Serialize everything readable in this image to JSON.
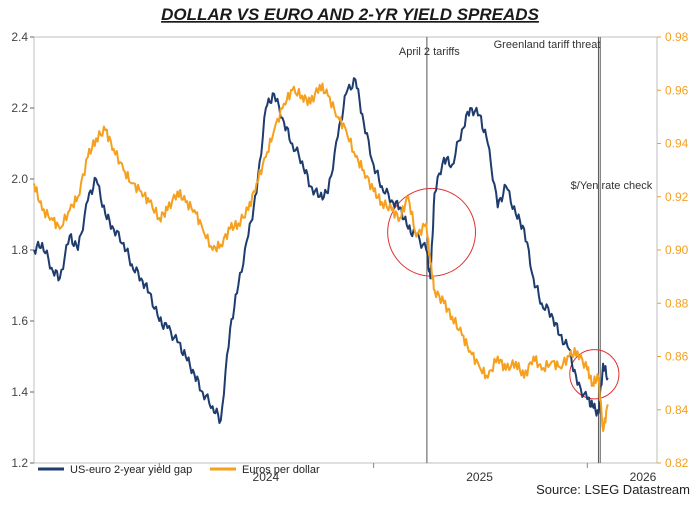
{
  "chart_data": {
    "type": "line",
    "title": "DOLLAR VS EURO AND 2-YR YIELD SPREADS",
    "source": "Source: LSEG Datastream",
    "x_ticks": [
      "2024",
      "2025",
      "2026"
    ],
    "x_range": [
      "2023-06-01",
      "2026-04-30"
    ],
    "y_left": {
      "ylim": [
        1.2,
        2.4
      ],
      "ticks": [
        "1.2",
        "1.4",
        "1.6",
        "1.8",
        "2.0",
        "2.2",
        "2.4"
      ]
    },
    "y_right": {
      "ylim": [
        0.82,
        0.98
      ],
      "ticks": [
        "0.82",
        "0.84",
        "0.86",
        "0.88",
        "0.90",
        "0.92",
        "0.94",
        "0.96",
        "0.98"
      ]
    },
    "grid": false,
    "legend_position": "bottom-left",
    "colors": {
      "spread": "#1f3c6e",
      "euro": "#f5a01e",
      "circle": "#e03030",
      "vline": "#555555"
    },
    "annotations": [
      {
        "text": "April 2 tariffs",
        "x": "2025-04-02"
      },
      {
        "text": "Greenland tariff threat",
        "x": "2026-01-20"
      },
      {
        "text": "$/Yen rate check",
        "x": "2026-01-23"
      }
    ],
    "highlight_circles": [
      {
        "center_x": "2025-04-10",
        "center_y_left": 1.85,
        "radius_days": 75
      },
      {
        "center_x": "2026-01-13",
        "center_y_left": 1.45,
        "radius_days": 42
      }
    ],
    "series": [
      {
        "name": "US-euro 2-year yield gap",
        "axis": "left",
        "x": [
          "2023-06-01",
          "2023-06-15",
          "2023-07-01",
          "2023-07-15",
          "2023-08-01",
          "2023-08-15",
          "2023-09-01",
          "2023-09-15",
          "2023-10-01",
          "2023-10-15",
          "2023-11-01",
          "2023-11-15",
          "2023-12-01",
          "2023-12-15",
          "2024-01-01",
          "2024-01-15",
          "2024-02-01",
          "2024-02-15",
          "2024-03-01",
          "2024-03-15",
          "2024-04-01",
          "2024-04-15",
          "2024-05-01",
          "2024-05-15",
          "2024-06-01",
          "2024-06-15",
          "2024-07-01",
          "2024-07-15",
          "2024-08-01",
          "2024-08-15",
          "2024-09-01",
          "2024-09-15",
          "2024-10-01",
          "2024-10-15",
          "2024-11-01",
          "2024-11-15",
          "2024-12-01",
          "2024-12-15",
          "2025-01-01",
          "2025-01-15",
          "2025-02-01",
          "2025-02-15",
          "2025-03-01",
          "2025-03-15",
          "2025-04-01",
          "2025-04-08",
          "2025-04-15",
          "2025-05-01",
          "2025-05-15",
          "2025-06-01",
          "2025-06-15",
          "2025-07-01",
          "2025-07-15",
          "2025-08-01",
          "2025-08-15",
          "2025-09-01",
          "2025-09-15",
          "2025-10-01",
          "2025-10-15",
          "2025-11-01",
          "2025-11-15",
          "2025-12-01",
          "2025-12-15",
          "2026-01-01",
          "2026-01-10",
          "2026-01-20",
          "2026-01-28",
          "2026-02-05"
        ],
        "values": [
          1.8,
          1.82,
          1.75,
          1.72,
          1.84,
          1.8,
          1.94,
          2.0,
          1.9,
          1.86,
          1.82,
          1.76,
          1.72,
          1.68,
          1.6,
          1.58,
          1.54,
          1.5,
          1.45,
          1.4,
          1.36,
          1.32,
          1.58,
          1.7,
          1.84,
          1.96,
          2.2,
          2.24,
          2.16,
          2.1,
          2.05,
          1.98,
          1.95,
          1.96,
          2.12,
          2.24,
          2.28,
          2.16,
          2.04,
          1.98,
          1.94,
          1.92,
          1.86,
          1.84,
          1.8,
          1.72,
          1.96,
          2.06,
          2.04,
          2.14,
          2.2,
          2.18,
          2.1,
          1.92,
          1.98,
          1.9,
          1.86,
          1.72,
          1.65,
          1.62,
          1.56,
          1.52,
          1.42,
          1.38,
          1.36,
          1.34,
          1.48,
          1.44
        ]
      },
      {
        "name": "Euros per dollar",
        "axis": "right",
        "x": [
          "2023-06-01",
          "2023-06-15",
          "2023-07-01",
          "2023-07-15",
          "2023-08-01",
          "2023-08-15",
          "2023-09-01",
          "2023-09-15",
          "2023-10-01",
          "2023-10-15",
          "2023-11-01",
          "2023-11-15",
          "2023-12-01",
          "2023-12-15",
          "2024-01-01",
          "2024-01-15",
          "2024-02-01",
          "2024-02-15",
          "2024-03-01",
          "2024-03-15",
          "2024-04-01",
          "2024-04-15",
          "2024-05-01",
          "2024-05-15",
          "2024-06-01",
          "2024-06-15",
          "2024-07-01",
          "2024-07-15",
          "2024-08-01",
          "2024-08-15",
          "2024-09-01",
          "2024-09-15",
          "2024-10-01",
          "2024-10-15",
          "2024-11-01",
          "2024-11-15",
          "2024-12-01",
          "2024-12-15",
          "2025-01-01",
          "2025-01-15",
          "2025-02-01",
          "2025-02-15",
          "2025-03-01",
          "2025-03-15",
          "2025-04-01",
          "2025-04-08",
          "2025-04-15",
          "2025-05-01",
          "2025-05-15",
          "2025-06-01",
          "2025-06-15",
          "2025-07-01",
          "2025-07-15",
          "2025-08-01",
          "2025-08-15",
          "2025-09-01",
          "2025-09-15",
          "2025-10-01",
          "2025-10-15",
          "2025-11-01",
          "2025-11-15",
          "2025-12-01",
          "2025-12-15",
          "2026-01-01",
          "2026-01-10",
          "2026-01-20",
          "2026-01-28",
          "2026-02-05"
        ],
        "values": [
          0.925,
          0.915,
          0.912,
          0.908,
          0.915,
          0.92,
          0.935,
          0.942,
          0.945,
          0.938,
          0.93,
          0.925,
          0.922,
          0.918,
          0.912,
          0.915,
          0.922,
          0.918,
          0.915,
          0.908,
          0.9,
          0.902,
          0.908,
          0.91,
          0.915,
          0.925,
          0.935,
          0.945,
          0.955,
          0.96,
          0.958,
          0.955,
          0.962,
          0.958,
          0.95,
          0.945,
          0.935,
          0.93,
          0.922,
          0.918,
          0.915,
          0.912,
          0.92,
          0.905,
          0.91,
          0.895,
          0.885,
          0.88,
          0.875,
          0.868,
          0.862,
          0.856,
          0.852,
          0.86,
          0.855,
          0.858,
          0.852,
          0.86,
          0.855,
          0.858,
          0.856,
          0.86,
          0.862,
          0.855,
          0.85,
          0.852,
          0.832,
          0.842
        ]
      }
    ]
  }
}
